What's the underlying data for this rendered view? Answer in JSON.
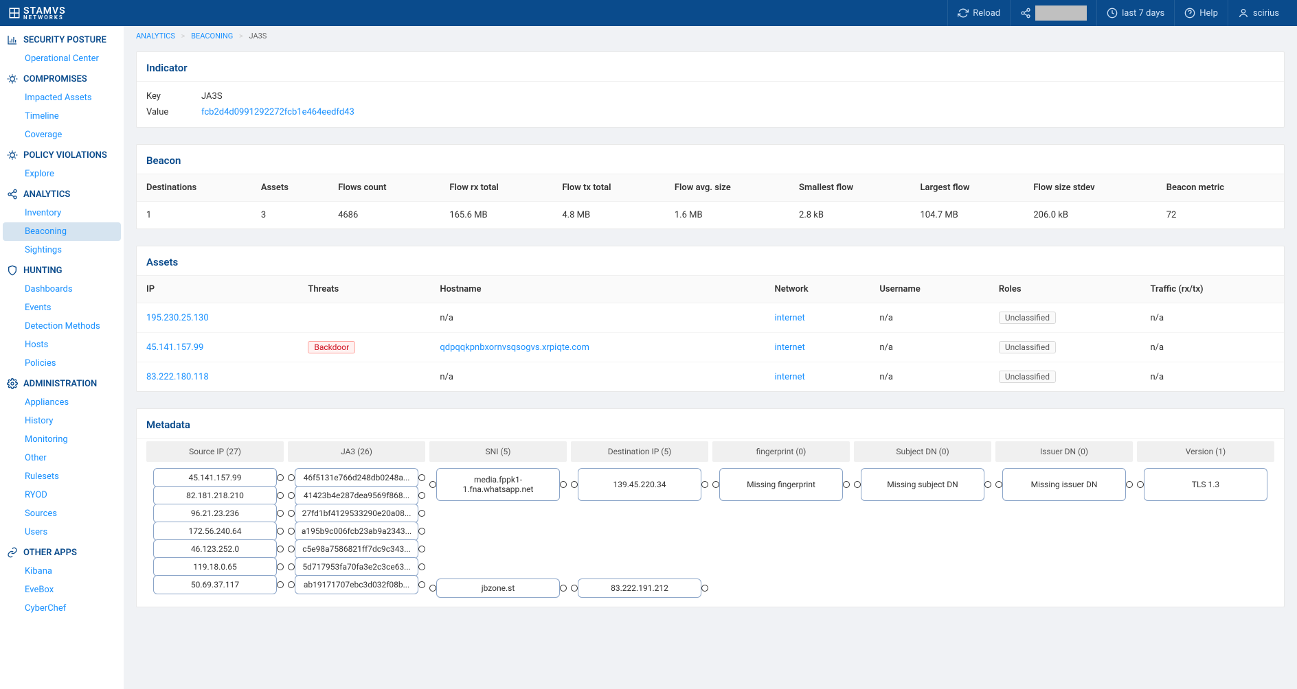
{
  "brand": {
    "name": "STAMVS",
    "sub": "NETWORKS"
  },
  "topbar": {
    "reload": "Reload",
    "timerange": "last 7 days",
    "help": "Help",
    "user": "scirius"
  },
  "sidebar": {
    "sections": [
      {
        "icon": "chart",
        "title": "SECURITY POSTURE",
        "items": [
          {
            "label": "Operational Center"
          }
        ]
      },
      {
        "icon": "bug",
        "title": "COMPROMISES",
        "items": [
          {
            "label": "Impacted Assets"
          },
          {
            "label": "Timeline"
          },
          {
            "label": "Coverage"
          }
        ]
      },
      {
        "icon": "bug",
        "title": "POLICY VIOLATIONS",
        "items": [
          {
            "label": "Explore"
          }
        ]
      },
      {
        "icon": "share",
        "title": "ANALYTICS",
        "items": [
          {
            "label": "Inventory"
          },
          {
            "label": "Beaconing",
            "active": true
          },
          {
            "label": "Sightings"
          }
        ]
      },
      {
        "icon": "shield",
        "title": "HUNTING",
        "items": [
          {
            "label": "Dashboards"
          },
          {
            "label": "Events"
          },
          {
            "label": "Detection Methods"
          },
          {
            "label": "Hosts"
          },
          {
            "label": "Policies"
          }
        ]
      },
      {
        "icon": "gear",
        "title": "ADMINISTRATION",
        "items": [
          {
            "label": "Appliances"
          },
          {
            "label": "History"
          },
          {
            "label": "Monitoring"
          },
          {
            "label": "Other"
          },
          {
            "label": "Rulesets"
          },
          {
            "label": "RYOD"
          },
          {
            "label": "Sources"
          },
          {
            "label": "Users"
          }
        ]
      },
      {
        "icon": "link",
        "title": "OTHER APPS",
        "items": [
          {
            "label": "Kibana"
          },
          {
            "label": "EveBox"
          },
          {
            "label": "CyberChef"
          }
        ]
      }
    ]
  },
  "breadcrumb": {
    "a": "ANALYTICS",
    "b": "BEACONING",
    "c": "JA3S"
  },
  "indicator": {
    "title": "Indicator",
    "key_label": "Key",
    "key_value": "JA3S",
    "value_label": "Value",
    "value_value": "fcb2d4d0991292272fcb1e464eedfd43"
  },
  "beacon": {
    "title": "Beacon",
    "headers": [
      "Destinations",
      "Assets",
      "Flows count",
      "Flow rx total",
      "Flow tx total",
      "Flow avg. size",
      "Smallest flow",
      "Largest flow",
      "Flow size stdev",
      "Beacon metric"
    ],
    "row": [
      "1",
      "3",
      "4686",
      "165.6 MB",
      "4.8 MB",
      "1.6 MB",
      "2.8 kB",
      "104.7 MB",
      "206.0 kB",
      "72"
    ]
  },
  "assets": {
    "title": "Assets",
    "headers": [
      "IP",
      "Threats",
      "Hostname",
      "Network",
      "Username",
      "Roles",
      "Traffic (rx/tx)"
    ],
    "rows": [
      {
        "ip": "195.230.25.130",
        "threat": "",
        "hostname": "n/a",
        "network": "internet",
        "username": "n/a",
        "role": "Unclassified",
        "traffic": "n/a",
        "hostlink": false
      },
      {
        "ip": "45.141.157.99",
        "threat": "Backdoor",
        "hostname": "qdpqqkpnbxornvsqsogvs.xrpiqte.com",
        "network": "internet",
        "username": "n/a",
        "role": "Unclassified",
        "traffic": "n/a",
        "hostlink": true
      },
      {
        "ip": "83.222.180.118",
        "threat": "",
        "hostname": "n/a",
        "network": "internet",
        "username": "n/a",
        "role": "Unclassified",
        "traffic": "n/a",
        "hostlink": false
      }
    ]
  },
  "metadata": {
    "title": "Metadata",
    "columns": [
      {
        "header": "Source IP (27)",
        "tall": false,
        "gap": false,
        "items": [
          "45.141.157.99",
          "82.181.218.210",
          "96.21.23.236",
          "172.56.240.64",
          "46.123.252.0",
          "119.18.0.65",
          "50.69.37.117"
        ]
      },
      {
        "header": "JA3 (26)",
        "tall": false,
        "gap": false,
        "items": [
          "46f5131e766d248db0248a...",
          "41423b4e287dea9569f868...",
          "27fd1bf4129533290e20a08...",
          "a195b9c006fcb23ab9a2343...",
          "c5e98a7586821ff7dc9c343...",
          "5d717953fa70fa3e2c3ce63...",
          "ab19171707ebc3d032f08b..."
        ]
      },
      {
        "header": "SNI (5)",
        "tall": true,
        "gap": true,
        "items": [
          "media.fppk1-1.fna.whatsapp.net",
          "jbzone.st"
        ]
      },
      {
        "header": "Destination IP (5)",
        "tall": true,
        "gap": true,
        "items": [
          "139.45.220.34",
          "83.222.191.212"
        ]
      },
      {
        "header": "fingerprint (0)",
        "tall": true,
        "gap": false,
        "items": [
          "Missing fingerprint"
        ]
      },
      {
        "header": "Subject DN (0)",
        "tall": true,
        "gap": false,
        "items": [
          "Missing subject DN"
        ]
      },
      {
        "header": "Issuer DN (0)",
        "tall": true,
        "gap": false,
        "items": [
          "Missing issuer DN"
        ]
      },
      {
        "header": "Version (1)",
        "tall": true,
        "gap": false,
        "items": [
          "TLS 1.3"
        ]
      }
    ]
  },
  "colors": {
    "primary": "#0a4b8c",
    "link": "#1890ff",
    "danger": "#cf1322"
  }
}
